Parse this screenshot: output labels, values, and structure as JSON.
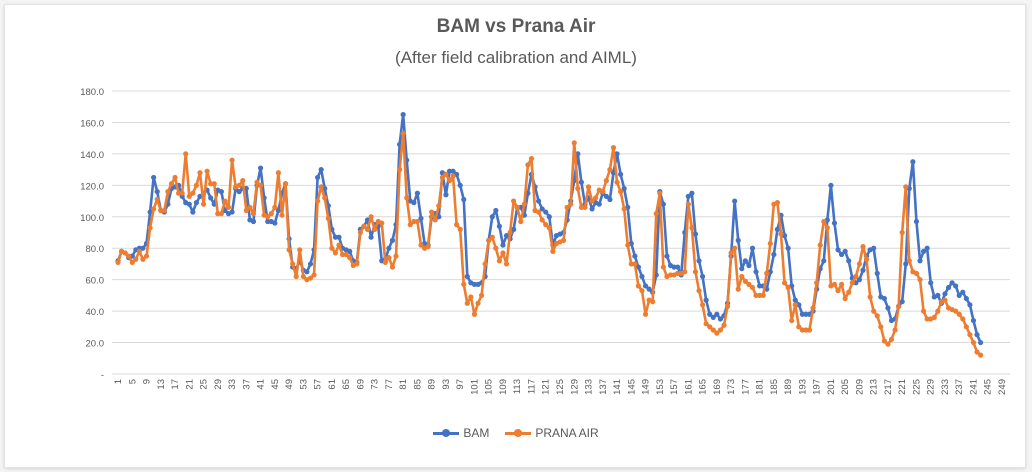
{
  "chart_data": {
    "type": "line",
    "title": "BAM vs Prana Air",
    "subtitle": "(After field calibration and AIML)",
    "xlabel": "",
    "ylabel": "",
    "ylim": [
      0,
      180
    ],
    "yticks": [
      0,
      20,
      40,
      60,
      80,
      100,
      120,
      140,
      160,
      180
    ],
    "ytick_labels": [
      "-",
      "20.0",
      "40.0",
      "60.0",
      "80.0",
      "100.0",
      "120.0",
      "140.0",
      "160.0",
      "180.0"
    ],
    "xlim": [
      1,
      250
    ],
    "xtick_step": 4,
    "grid": true,
    "legend": "bottom",
    "series": [
      {
        "name": "BAM",
        "color": "#4472c4",
        "values": [
          72,
          78,
          77,
          74,
          75,
          79,
          80,
          80,
          83,
          103,
          125,
          116,
          104,
          103,
          108,
          118,
          119,
          120,
          113,
          109,
          108,
          103,
          109,
          113,
          115,
          117,
          112,
          108,
          117,
          116,
          104,
          102,
          103,
          118,
          116,
          118,
          118,
          98,
          97,
          120,
          131,
          112,
          97,
          97,
          96,
          104,
          115,
          121,
          86,
          68,
          67,
          72,
          66,
          65,
          70,
          79,
          125,
          130,
          118,
          107,
          92,
          87,
          87,
          80,
          79,
          78,
          72,
          71,
          92,
          94,
          98,
          87,
          95,
          94,
          72,
          73,
          80,
          85,
          95,
          146,
          165,
          136,
          110,
          109,
          115,
          99,
          83,
          82,
          100,
          102,
          100,
          128,
          114,
          129,
          129,
          127,
          120,
          111,
          62,
          58,
          57,
          57,
          58,
          62,
          85,
          100,
          104,
          94,
          82,
          88,
          86,
          92,
          106,
          106,
          101,
          115,
          127,
          119,
          110,
          105,
          103,
          100,
          82,
          88,
          89,
          90,
          98,
          110,
          123,
          140,
          122,
          108,
          112,
          105,
          109,
          108,
          115,
          113,
          111,
          128,
          140,
          127,
          118,
          106,
          83,
          75,
          68,
          62,
          56,
          54,
          52,
          63,
          116,
          108,
          75,
          69,
          68,
          68,
          63,
          90,
          113,
          115,
          89,
          72,
          62,
          47,
          38,
          36,
          38,
          35,
          37,
          45,
          75,
          110,
          85,
          67,
          72,
          69,
          80,
          65,
          56,
          56,
          54,
          65,
          76,
          92,
          101,
          88,
          80,
          56,
          47,
          44,
          38,
          38,
          38,
          40,
          54,
          67,
          72,
          98,
          120,
          96,
          79,
          76,
          78,
          72,
          61,
          58,
          60,
          66,
          75,
          79,
          80,
          64,
          49,
          48,
          42,
          34,
          35,
          43,
          46,
          70,
          118,
          135,
          97,
          72,
          78,
          80,
          58,
          49,
          50,
          45,
          51,
          55,
          58,
          56,
          50,
          52,
          48,
          44,
          34,
          25,
          20
        ]
      },
      {
        "name": "PRANA AIR",
        "color": "#ed7d31",
        "values": [
          71,
          78,
          77,
          75,
          71,
          73,
          78,
          73,
          75,
          93,
          105,
          111,
          104,
          104,
          116,
          121,
          125,
          115,
          115,
          140,
          113,
          115,
          120,
          128,
          108,
          129,
          121,
          121,
          102,
          102,
          110,
          106,
          136,
          119,
          120,
          123,
          104,
          106,
          102,
          122,
          120,
          101,
          100,
          102,
          106,
          128,
          101,
          121,
          79,
          70,
          62,
          79,
          62,
          60,
          61,
          63,
          110,
          119,
          112,
          99,
          80,
          77,
          82,
          76,
          76,
          74,
          69,
          70,
          90,
          94,
          92,
          100,
          92,
          97,
          96,
          71,
          74,
          68,
          75,
          130,
          153,
          112,
          95,
          97,
          97,
          82,
          80,
          81,
          103,
          98,
          107,
          125,
          127,
          123,
          126,
          95,
          92,
          57,
          45,
          49,
          38,
          45,
          50,
          70,
          85,
          87,
          80,
          72,
          77,
          70,
          90,
          110,
          106,
          97,
          108,
          133,
          137,
          104,
          103,
          98,
          95,
          93,
          78,
          83,
          84,
          85,
          106,
          108,
          147,
          118,
          106,
          106,
          119,
          110,
          112,
          117,
          116,
          123,
          130,
          144,
          122,
          116,
          105,
          82,
          70,
          70,
          56,
          53,
          38,
          47,
          46,
          102,
          115,
          68,
          62,
          63,
          63,
          64,
          64,
          65,
          108,
          93,
          65,
          53,
          44,
          32,
          30,
          28,
          26,
          28,
          31,
          43,
          77,
          80,
          54,
          62,
          59,
          57,
          55,
          50,
          50,
          50,
          64,
          83,
          108,
          109,
          89,
          58,
          55,
          34,
          44,
          30,
          28,
          28,
          28,
          42,
          58,
          82,
          97,
          93,
          56,
          57,
          53,
          57,
          48,
          52,
          58,
          62,
          70,
          81,
          73,
          49,
          40,
          37,
          30,
          21,
          19,
          22,
          28,
          43,
          90,
          119,
          72,
          65,
          64,
          60,
          40,
          35,
          35,
          36,
          40,
          46,
          47,
          42,
          41,
          40,
          38,
          35,
          30,
          25,
          20,
          14,
          12
        ]
      }
    ]
  }
}
